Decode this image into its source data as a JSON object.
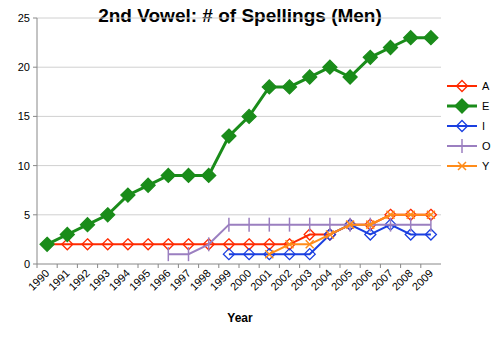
{
  "chart_data": {
    "type": "line",
    "title": "2nd Vowel: # of Spellings (Men)",
    "x_label": "Year",
    "categories": [
      "1990",
      "1991",
      "1992",
      "1993",
      "1994",
      "1995",
      "1996",
      "1997",
      "1998",
      "1999",
      "2000",
      "2001",
      "2002",
      "2003",
      "2004",
      "2005",
      "2006",
      "2007",
      "2008",
      "2009"
    ],
    "ylim": [
      0,
      25
    ],
    "yticks": [
      0,
      5,
      10,
      15,
      20,
      25
    ],
    "grid": true,
    "legend": "right",
    "series": [
      {
        "name": "A",
        "color": "#ff2a00",
        "marker": "diamond-open",
        "values": [
          2,
          2,
          2,
          2,
          2,
          2,
          2,
          2,
          2,
          2,
          2,
          2,
          2,
          3,
          3,
          4,
          4,
          5,
          5,
          5
        ]
      },
      {
        "name": "E",
        "color": "#1a8c1a",
        "marker": "diamond",
        "values": [
          2,
          3,
          4,
          5,
          7,
          8,
          9,
          9,
          9,
          13,
          15,
          18,
          18,
          19,
          20,
          19,
          21,
          22,
          23,
          23
        ]
      },
      {
        "name": "I",
        "color": "#1a3fe0",
        "marker": "diamond-open",
        "values": [
          null,
          null,
          null,
          null,
          null,
          null,
          null,
          null,
          null,
          1,
          1,
          1,
          1,
          1,
          3,
          4,
          3,
          4,
          3,
          3
        ]
      },
      {
        "name": "O",
        "color": "#9b7fc0",
        "marker": "vline",
        "values": [
          null,
          null,
          null,
          null,
          null,
          null,
          1,
          1,
          2,
          4,
          4,
          4,
          4,
          4,
          4,
          4,
          4,
          4,
          4,
          4
        ]
      },
      {
        "name": "Y",
        "color": "#ff8c1a",
        "marker": "x",
        "values": [
          null,
          null,
          null,
          null,
          null,
          null,
          null,
          null,
          null,
          null,
          null,
          1,
          2,
          2,
          3,
          4,
          4,
          5,
          5,
          5
        ]
      }
    ]
  }
}
